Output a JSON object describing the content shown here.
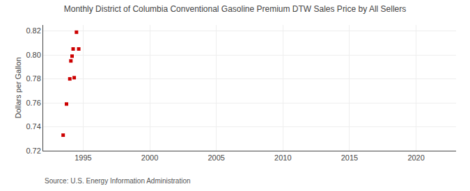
{
  "chart_data": {
    "type": "scatter",
    "title": "Monthly District of Columbia Conventional Gasoline Premium DTW Sales Price by All Sellers",
    "ylabel": "Dollars per Gallon",
    "annotations": [
      "Source: U.S. Energy Information Administration"
    ],
    "x": [
      1993.5,
      1993.75,
      1994.0,
      1994.08,
      1994.17,
      1994.25,
      1994.33,
      1994.5,
      1994.67
    ],
    "values": [
      0.733,
      0.759,
      0.78,
      0.795,
      0.799,
      0.805,
      0.781,
      0.819,
      0.805
    ],
    "color": "#cc0000",
    "marker": "square",
    "xlim": [
      1992,
      2023
    ],
    "ylim": [
      0.72,
      0.825
    ],
    "xticks": [
      1995,
      2000,
      2005,
      2010,
      2015,
      2020
    ],
    "yticks": [
      0.72,
      0.74,
      0.76,
      0.78,
      {
        "value": 0.8,
        "label": "0.80"
      },
      0.82
    ],
    "grid": true
  }
}
